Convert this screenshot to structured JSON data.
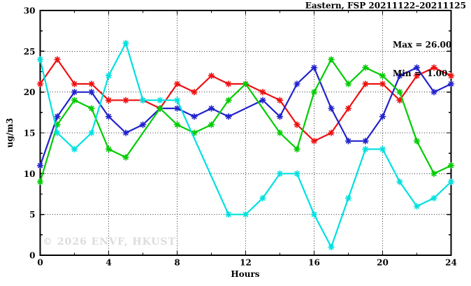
{
  "chart_data": {
    "type": "line",
    "title": "Eastern, FSP 20211122–20211125",
    "xlabel": "Hours",
    "ylabel": "ug/m3",
    "watermark": "© 2026 ENVF, HKUST",
    "annotations": {
      "max": "Max = 26.00",
      "min": "Min =  1.00"
    },
    "xlim": [
      0,
      24
    ],
    "ylim": [
      0,
      30
    ],
    "xticks": [
      0,
      4,
      8,
      12,
      16,
      20,
      24
    ],
    "yticks": [
      0,
      5,
      10,
      15,
      20,
      25,
      30
    ],
    "minor_x_step": 2,
    "minor_y_step": 2.5,
    "grid": true,
    "legend_position": "none",
    "x": [
      0,
      1,
      2,
      3,
      4,
      5,
      6,
      7,
      8,
      9,
      10,
      11,
      12,
      13,
      14,
      15,
      16,
      17,
      18,
      19,
      20,
      21,
      22,
      23,
      24
    ],
    "series": [
      {
        "name": "series-red",
        "color": "#ee1111",
        "values": [
          21,
          24,
          21,
          21,
          19,
          19,
          19,
          18,
          21,
          20,
          22,
          21,
          21,
          20,
          19,
          16,
          14,
          15,
          18,
          21,
          21,
          19,
          22,
          23,
          22
        ]
      },
      {
        "name": "series-blue",
        "color": "#2222cc",
        "values": [
          11,
          17,
          20,
          20,
          17,
          15,
          16,
          18,
          18,
          17,
          18,
          17,
          null,
          19,
          17,
          21,
          23,
          18,
          14,
          14,
          17,
          22,
          23,
          20,
          21
        ]
      },
      {
        "name": "series-green",
        "color": "#00cc00",
        "values": [
          9,
          16,
          19,
          18,
          13,
          12,
          null,
          18,
          16,
          15,
          16,
          19,
          21,
          null,
          15,
          13,
          20,
          24,
          21,
          23,
          22,
          20,
          14,
          10,
          11
        ]
      },
      {
        "name": "series-cyan",
        "color": "#00e0e0",
        "values": [
          24,
          15,
          13,
          15,
          22,
          26,
          19,
          19,
          19,
          null,
          null,
          5,
          5,
          7,
          10,
          10,
          5,
          1,
          7,
          13,
          13,
          9,
          6,
          7,
          9
        ]
      }
    ]
  }
}
